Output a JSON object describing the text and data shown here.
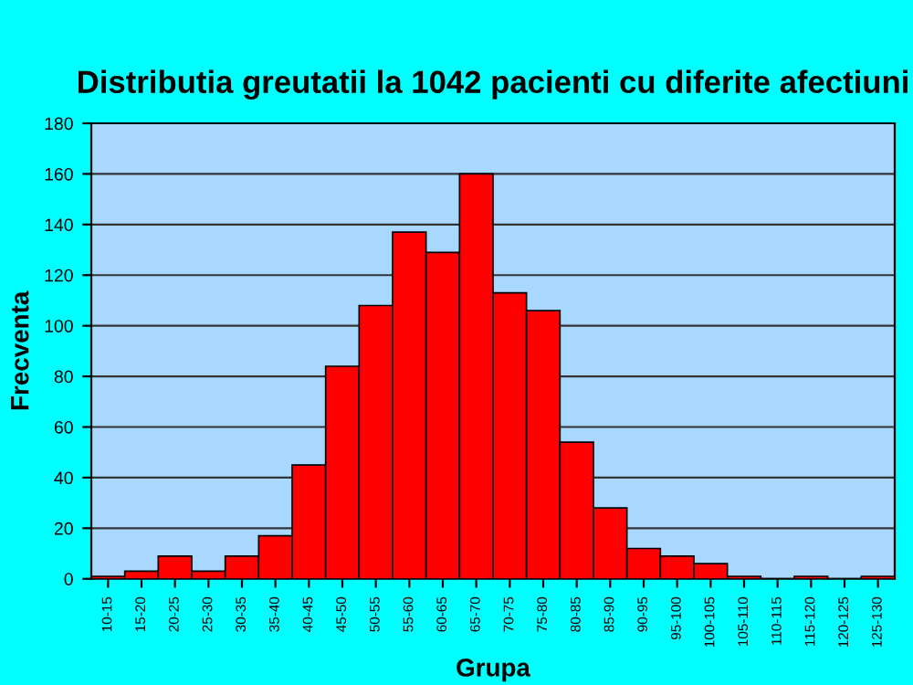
{
  "chart_data": {
    "type": "bar",
    "title": "Distributia greutatii la 1042 pacienti cu diferite afectiuni",
    "xlabel": "Grupa",
    "ylabel": "Frecventa",
    "categories": [
      "10-15",
      "15-20",
      "20-25",
      "25-30",
      "30-35",
      "35-40",
      "40-45",
      "45-50",
      "50-55",
      "55-60",
      "60-65",
      "65-70",
      "70-75",
      "75-80",
      "80-85",
      "85-90",
      "90-95",
      "95-100",
      "100-105",
      "105-110",
      "110-115",
      "115-120",
      "120-125",
      "125-130"
    ],
    "values": [
      1,
      3,
      9,
      3,
      9,
      17,
      45,
      84,
      108,
      137,
      129,
      160,
      113,
      106,
      54,
      28,
      12,
      9,
      6,
      1,
      0,
      1,
      0,
      1
    ],
    "color": "#ff0000",
    "ylim": [
      0,
      180
    ],
    "yticks": [
      0,
      20,
      40,
      60,
      80,
      100,
      120,
      140,
      160,
      180
    ],
    "grid": "y",
    "legend": false
  }
}
